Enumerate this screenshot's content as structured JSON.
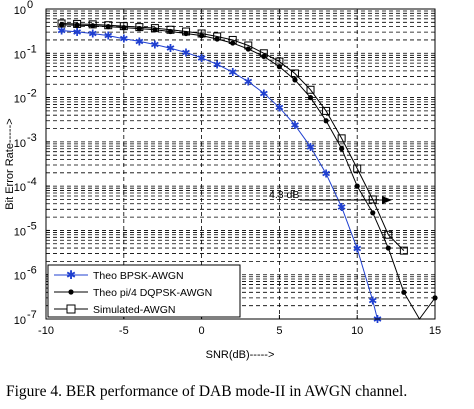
{
  "caption": "Figure 4.    BER performance of DAB mode-II in AWGN channel.",
  "chart_data": {
    "type": "line",
    "title": "",
    "xlabel": "SNR(dB)----->",
    "ylabel": "Bit Error Rate----->",
    "xlim": [
      -10,
      15
    ],
    "ylim": [
      1e-07,
      1
    ],
    "yscale": "log",
    "grid": "dashed horizontal",
    "x_ticks": [
      "-10",
      "-5",
      "0",
      "5",
      "10",
      "15"
    ],
    "y_tick_labels": [
      {
        "base": "10",
        "exp": "0"
      },
      {
        "base": "10",
        "exp": "-1"
      },
      {
        "base": "10",
        "exp": "-2"
      },
      {
        "base": "10",
        "exp": "-3"
      },
      {
        "base": "10",
        "exp": "-4"
      },
      {
        "base": "10",
        "exp": "-5"
      },
      {
        "base": "10",
        "exp": "-6"
      },
      {
        "base": "10",
        "exp": "-7"
      }
    ],
    "legend_position": "bottom-left",
    "series": [
      {
        "name": "Theo BPSK-AWGN",
        "color": "#2040d0",
        "marker": "star",
        "x": [
          -9,
          -8,
          -7,
          -6,
          -5,
          -4,
          -3,
          -2,
          -1,
          0,
          1,
          2,
          3,
          4,
          5,
          6,
          7,
          8,
          9,
          10,
          11,
          11.3
        ],
        "y": [
          0.327,
          0.304,
          0.279,
          0.25,
          0.213,
          0.186,
          0.158,
          0.13,
          0.104,
          0.0786,
          0.0563,
          0.0375,
          0.0229,
          0.0125,
          0.00595,
          0.00239,
          0.000773,
          0.000191,
          3.36e-05,
          3.87e-06,
          2.6e-07,
          1e-07
        ]
      },
      {
        "name": "Theo pi/4 DQPSK-AWGN",
        "color": "#000000",
        "marker": "dot",
        "x": [
          -9,
          -8,
          -7,
          -6,
          -5,
          -4,
          -3,
          -2,
          -1,
          0,
          1,
          2,
          3,
          4,
          5,
          6,
          7,
          8,
          9,
          10,
          11,
          12,
          13,
          14,
          15
        ],
        "y": [
          0.44,
          0.43,
          0.42,
          0.4,
          0.38,
          0.36,
          0.34,
          0.31,
          0.28,
          0.25,
          0.21,
          0.17,
          0.125,
          0.085,
          0.05,
          0.025,
          0.01,
          0.003,
          0.0007,
          0.0001,
          2.5e-05,
          4e-06,
          4e-07,
          2e-08,
          3e-07
        ]
      },
      {
        "name": "Simulated-AWGN",
        "color": "#000000",
        "marker": "square",
        "x": [
          -9,
          -8,
          -7,
          -6,
          -5,
          -4,
          -3,
          -2,
          -1,
          0,
          1,
          2,
          3,
          4,
          5,
          6,
          7,
          8,
          9,
          10,
          11,
          12,
          13
        ],
        "y": [
          0.47,
          0.46,
          0.45,
          0.43,
          0.41,
          0.39,
          0.37,
          0.34,
          0.31,
          0.28,
          0.24,
          0.2,
          0.15,
          0.1,
          0.065,
          0.035,
          0.015,
          0.005,
          0.0012,
          0.00025,
          5e-05,
          8e-06,
          3.5e-06
        ]
      }
    ],
    "annotations": [
      {
        "text": "4.3 dB",
        "x": 7.2,
        "y": 0.00011
      }
    ]
  }
}
